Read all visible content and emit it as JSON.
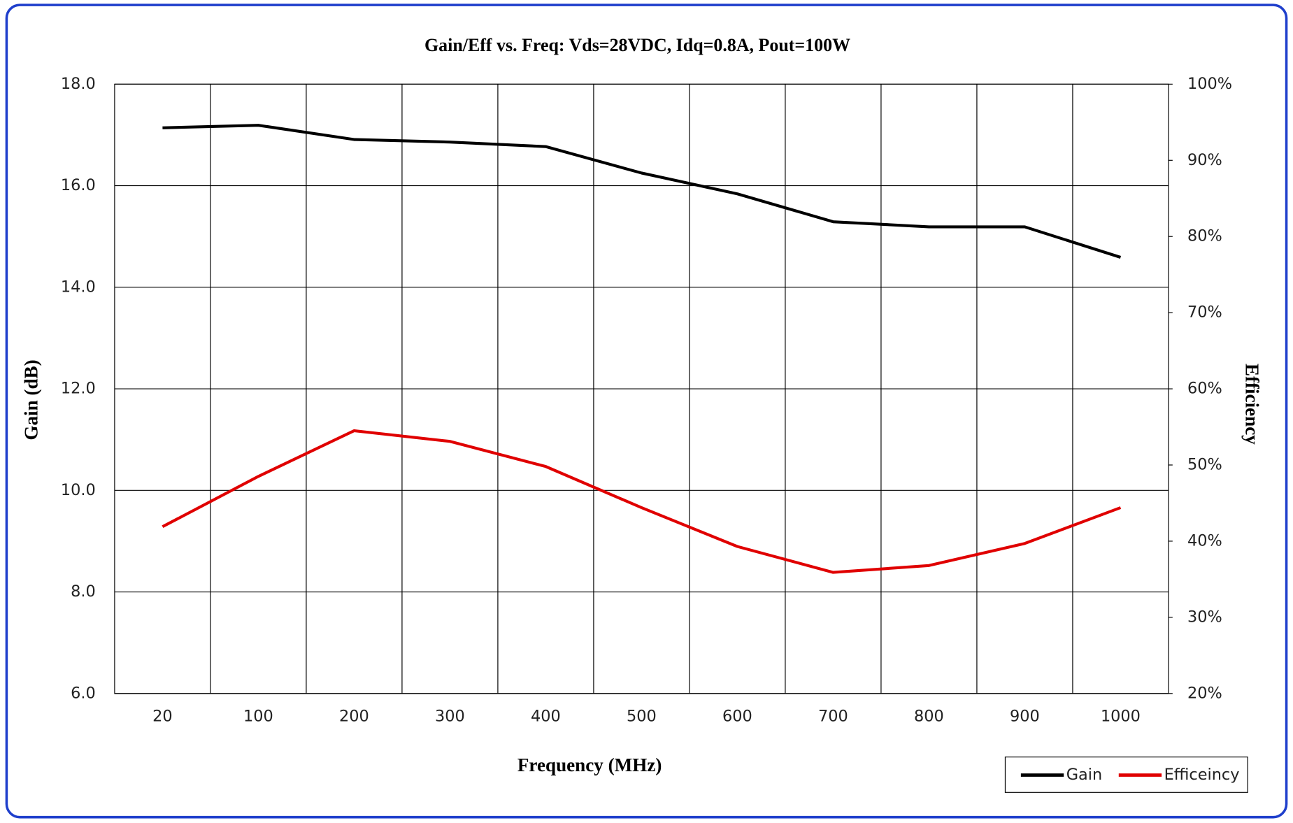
{
  "chart_data": {
    "type": "line",
    "title": "Gain/Eff vs. Freq: Vds=28VDC, Idq=0.8A, Pout=100W",
    "x_label": "Frequency (MHz)",
    "y_label": "Gain (dB)",
    "y2_label": "Efficiency",
    "categories": [
      "20",
      "100",
      "200",
      "300",
      "400",
      "500",
      "600",
      "700",
      "800",
      "900",
      "1000"
    ],
    "series": [
      {
        "name": "Gain",
        "color": "#000000",
        "values": [
          17.14,
          17.19,
          16.91,
          16.86,
          16.77,
          16.25,
          15.84,
          15.29,
          15.19,
          15.19,
          14.59
        ]
      },
      {
        "name": "Efficeincy",
        "color": "#e00000",
        "axis": "y2",
        "values": [
          41.9,
          48.5,
          54.5,
          53.1,
          49.8,
          44.4,
          39.3,
          35.9,
          36.8,
          39.7,
          44.4
        ]
      }
    ],
    "ylim": [
      6,
      18
    ],
    "yticks": [
      {
        "value": 6,
        "label": "6.0"
      },
      {
        "value": 8,
        "label": "8.0"
      },
      {
        "value": 10,
        "label": "10.0"
      },
      {
        "value": 12,
        "label": "12.0"
      },
      {
        "value": 14,
        "label": "14.0"
      },
      {
        "value": 16,
        "label": "16.0"
      },
      {
        "value": 18,
        "label": "18.0"
      }
    ],
    "y2lim": [
      20,
      100
    ],
    "y2ticks": [
      {
        "value": 20,
        "label": "20%"
      },
      {
        "value": 30,
        "label": "30%"
      },
      {
        "value": 40,
        "label": "40%"
      },
      {
        "value": 50,
        "label": "50%"
      },
      {
        "value": 60,
        "label": "60%"
      },
      {
        "value": 70,
        "label": "70%"
      },
      {
        "value": 80,
        "label": "80%"
      },
      {
        "value": 90,
        "label": "90%"
      },
      {
        "value": 100,
        "label": "100%"
      }
    ],
    "grid": true,
    "legend": "bottom-right"
  }
}
